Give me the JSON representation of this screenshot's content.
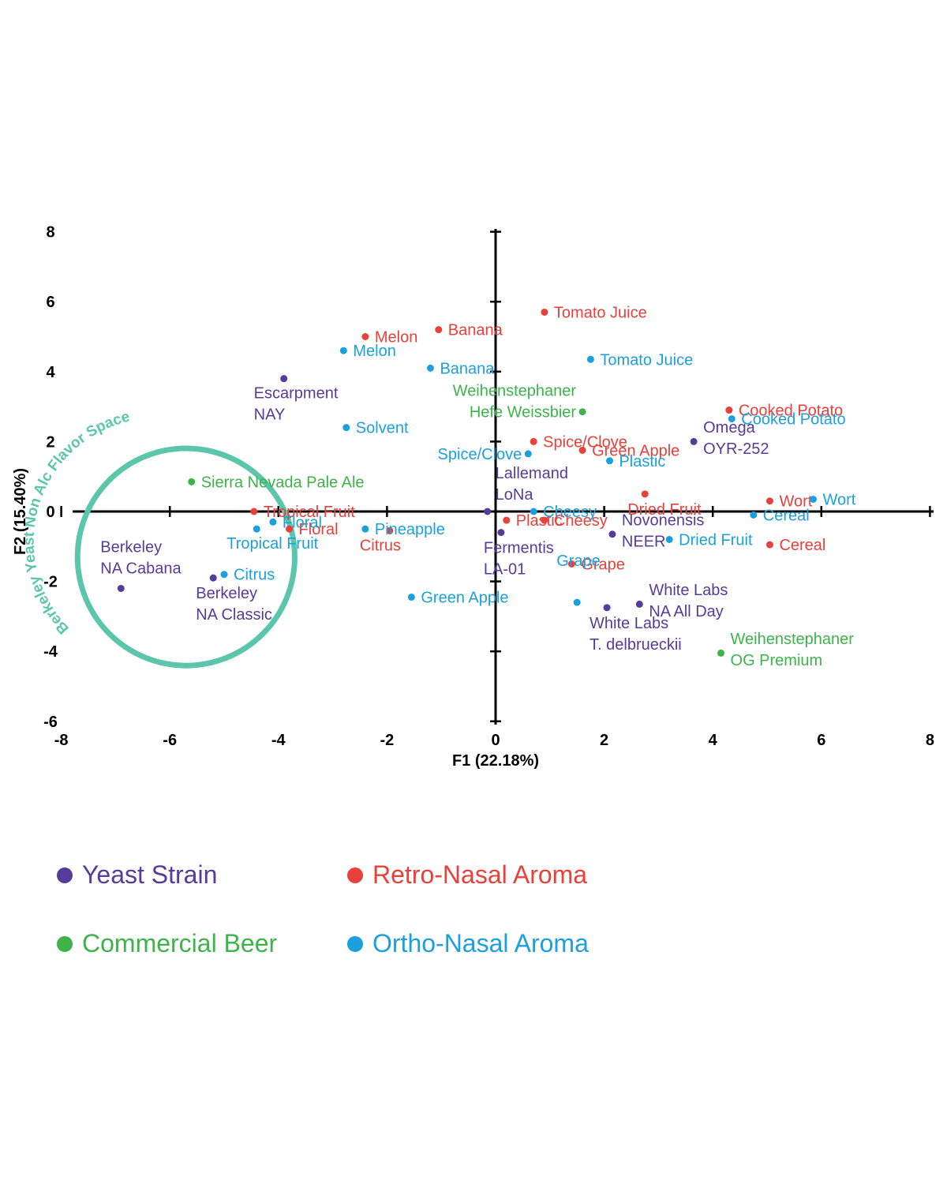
{
  "colors": {
    "yeast": "#553c9a",
    "retro": "#e8403a",
    "beer": "#3db34a",
    "ortho": "#1ba0dd",
    "circle": "#5cc6ad",
    "axis": "#000000"
  },
  "chart_data": {
    "type": "scatter",
    "title": "",
    "xlabel": "F1 (22.18%)",
    "ylabel": "F2 (15.40%)",
    "xlim": [
      -8,
      8
    ],
    "ylim": [
      -6,
      8
    ],
    "xticks": [
      "-8",
      "-6",
      "-4",
      "-2",
      "0",
      "2",
      "4",
      "6",
      "8"
    ],
    "yticks": [
      "8",
      "6",
      "4",
      "2",
      "0",
      "-2",
      "-4",
      "-6"
    ],
    "grid": false,
    "legend_placement": "bottom",
    "annotation": {
      "text": "Berkeley Yeast Non Alc Flavor Space",
      "center": [
        -5.7,
        -1.3
      ],
      "radius_x_units": 2.0
    },
    "series": [
      {
        "name": "Yeast Strain",
        "color_key": "yeast",
        "points": [
          {
            "x": -3.9,
            "y": 3.8,
            "label": [
              "Escarpment",
              "NAY"
            ],
            "anchor": "below"
          },
          {
            "x": -0.15,
            "y": 0.0,
            "label": [
              "Lallemand",
              "LoNa"
            ],
            "anchor": "above-right"
          },
          {
            "x": 0.1,
            "y": -0.6,
            "label": [
              "Fermentis",
              "LA-01"
            ],
            "anchor": "below-left"
          },
          {
            "x": 3.65,
            "y": 2.0,
            "label": [
              "Omega",
              "OYR-252"
            ],
            "anchor": "right"
          },
          {
            "x": 2.15,
            "y": -0.65,
            "label": [
              "Novonensis",
              "NEER"
            ],
            "anchor": "right"
          },
          {
            "x": 2.65,
            "y": -2.65,
            "label": [
              "White Labs",
              "NA All Day"
            ],
            "anchor": "right"
          },
          {
            "x": 2.05,
            "y": -2.75,
            "label": [
              "White Labs",
              "T. delbrueckii"
            ],
            "anchor": "below-left"
          },
          {
            "x": -6.9,
            "y": -2.2,
            "label": [
              "Berkeley",
              "NA Cabana"
            ],
            "anchor": "above-left"
          },
          {
            "x": -5.2,
            "y": -1.9,
            "label": [
              "Berkeley",
              "NA Classic"
            ],
            "anchor": "below-left"
          }
        ]
      },
      {
        "name": "Retro-Nasal Aroma",
        "color_key": "retro",
        "points": [
          {
            "x": 0.9,
            "y": 5.7,
            "label": [
              "Tomato Juice"
            ],
            "anchor": "right"
          },
          {
            "x": -2.4,
            "y": 5.0,
            "label": [
              "Melon"
            ],
            "anchor": "right"
          },
          {
            "x": -1.05,
            "y": 5.2,
            "label": [
              "Banana"
            ],
            "anchor": "right"
          },
          {
            "x": 4.3,
            "y": 2.9,
            "label": [
              "Cooked Potato"
            ],
            "anchor": "right"
          },
          {
            "x": 0.7,
            "y": 2.0,
            "label": [
              "Spice/Clove"
            ],
            "anchor": "right"
          },
          {
            "x": 1.6,
            "y": 1.75,
            "label": [
              "Green Apple"
            ],
            "anchor": "right"
          },
          {
            "x": 2.75,
            "y": 0.5,
            "label": [
              "Dried Fruit"
            ],
            "anchor": "below-left"
          },
          {
            "x": 5.05,
            "y": 0.3,
            "label": [
              "Wort"
            ],
            "anchor": "right"
          },
          {
            "x": -4.45,
            "y": 0.0,
            "label": [
              "Tropical Fruit"
            ],
            "anchor": "right"
          },
          {
            "x": 0.2,
            "y": -0.25,
            "label": [
              "Plastic"
            ],
            "anchor": "right"
          },
          {
            "x": 0.9,
            "y": -0.25,
            "label": [
              "Cheesy"
            ],
            "anchor": "right"
          },
          {
            "x": -3.8,
            "y": -0.5,
            "label": [
              "Floral"
            ],
            "anchor": "right"
          },
          {
            "x": -1.95,
            "y": -0.55,
            "label": [
              "Citrus"
            ],
            "anchor": "below"
          },
          {
            "x": 5.05,
            "y": -0.95,
            "label": [
              "Cereal"
            ],
            "anchor": "right"
          },
          {
            "x": 1.4,
            "y": -1.5,
            "label": [
              "Grape"
            ],
            "anchor": "right"
          }
        ]
      },
      {
        "name": "Commercial Beer",
        "color_key": "beer",
        "points": [
          {
            "x": 1.6,
            "y": 2.85,
            "label": [
              "Weihenstephaner",
              "Hefe Weissbier"
            ],
            "anchor": "left"
          },
          {
            "x": -5.6,
            "y": 0.85,
            "label": [
              "Sierra Nevada Pale Ale"
            ],
            "anchor": "right"
          },
          {
            "x": 4.15,
            "y": -4.05,
            "label": [
              "Weihenstephaner",
              "OG Premium"
            ],
            "anchor": "right"
          }
        ]
      },
      {
        "name": "Ortho-Nasal Aroma",
        "color_key": "ortho",
        "points": [
          {
            "x": -2.8,
            "y": 4.6,
            "label": [
              "Melon"
            ],
            "anchor": "right"
          },
          {
            "x": -1.2,
            "y": 4.1,
            "label": [
              "Banana"
            ],
            "anchor": "right"
          },
          {
            "x": 1.75,
            "y": 4.35,
            "label": [
              "Tomato Juice"
            ],
            "anchor": "right"
          },
          {
            "x": -2.75,
            "y": 2.4,
            "label": [
              "Solvent"
            ],
            "anchor": "right"
          },
          {
            "x": 4.35,
            "y": 2.65,
            "label": [
              "Cooked Potato"
            ],
            "anchor": "right"
          },
          {
            "x": 0.6,
            "y": 1.65,
            "label": [
              "Spice/Clove"
            ],
            "anchor": "left"
          },
          {
            "x": 2.1,
            "y": 1.45,
            "label": [
              "Plastic"
            ],
            "anchor": "right"
          },
          {
            "x": 0.7,
            "y": 0.0,
            "label": [
              "Cheesy"
            ],
            "anchor": "right"
          },
          {
            "x": 5.85,
            "y": 0.35,
            "label": [
              "Wort"
            ],
            "anchor": "right"
          },
          {
            "x": 4.75,
            "y": -0.1,
            "label": [
              "Cereal"
            ],
            "anchor": "right"
          },
          {
            "x": 3.2,
            "y": -0.8,
            "label": [
              "Dried Fruit"
            ],
            "anchor": "right"
          },
          {
            "x": -4.1,
            "y": -0.3,
            "label": [
              "Floral"
            ],
            "anchor": "right"
          },
          {
            "x": -4.4,
            "y": -0.5,
            "label": [
              "Tropical Fruit"
            ],
            "anchor": "below"
          },
          {
            "x": -2.4,
            "y": -0.5,
            "label": [
              "Pineapple"
            ],
            "anchor": "right"
          },
          {
            "x": -5.0,
            "y": -1.8,
            "label": [
              "Citrus"
            ],
            "anchor": "right"
          },
          {
            "x": -1.55,
            "y": -2.45,
            "label": [
              "Green Apple"
            ],
            "anchor": "right"
          },
          {
            "x": 1.5,
            "y": -2.6,
            "label": [
              "Grape"
            ],
            "anchor": "above-left"
          }
        ]
      }
    ]
  },
  "legend": [
    {
      "label": "Yeast Strain",
      "color_key": "yeast"
    },
    {
      "label": "Retro-Nasal Aroma",
      "color_key": "retro"
    },
    {
      "label": "Commercial Beer",
      "color_key": "beer"
    },
    {
      "label": "Ortho-Nasal Aroma",
      "color_key": "ortho"
    }
  ]
}
